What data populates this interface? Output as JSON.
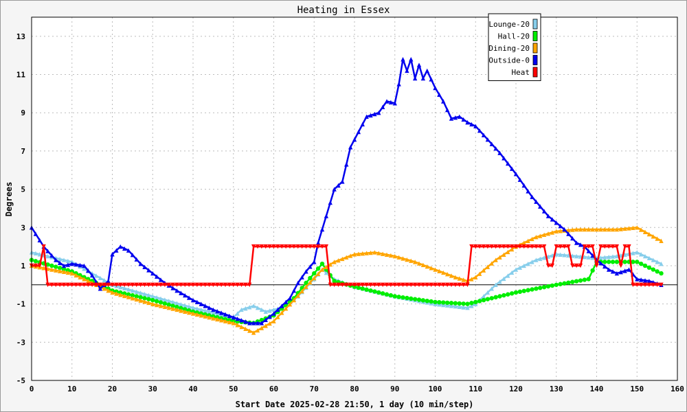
{
  "chart_data": {
    "type": "line",
    "title": "Heating in Essex",
    "xlabel": "Start Date 2025-02-28 21:50, 1 day (10 min/step)",
    "ylabel": "Degrees",
    "xlim": [
      0,
      160
    ],
    "ylim": [
      -5,
      14
    ],
    "x_ticks": [
      0,
      10,
      20,
      30,
      40,
      50,
      60,
      70,
      80,
      90,
      100,
      110,
      120,
      130,
      140,
      150,
      160
    ],
    "y_ticks": [
      -5,
      -3,
      -1,
      1,
      3,
      5,
      7,
      9,
      11,
      13
    ],
    "grid": true,
    "legend_position": "top-right",
    "series": [
      {
        "name": "Lounge-20",
        "color": "#87ceeb",
        "marker": "triangle",
        "points": [
          [
            0,
            1.7
          ],
          [
            10,
            1.2
          ],
          [
            20,
            0.0
          ],
          [
            30,
            -0.6
          ],
          [
            40,
            -1.2
          ],
          [
            50,
            -1.7
          ],
          [
            52,
            -1.3
          ],
          [
            55,
            -1.1
          ],
          [
            58,
            -1.4
          ],
          [
            62,
            -1.2
          ],
          [
            66,
            -0.6
          ],
          [
            70,
            0.3
          ],
          [
            72,
            0.8
          ],
          [
            75,
            0.3
          ],
          [
            80,
            -0.1
          ],
          [
            90,
            -0.6
          ],
          [
            100,
            -1.0
          ],
          [
            108,
            -1.2
          ],
          [
            110,
            -1.0
          ],
          [
            115,
            0.0
          ],
          [
            120,
            0.8
          ],
          [
            125,
            1.3
          ],
          [
            130,
            1.6
          ],
          [
            135,
            1.5
          ],
          [
            140,
            1.4
          ],
          [
            145,
            1.5
          ],
          [
            150,
            1.7
          ],
          [
            156,
            1.1
          ]
        ]
      },
      {
        "name": "Hall-20",
        "color": "#00ee00",
        "marker": "circle",
        "points": [
          [
            0,
            1.3
          ],
          [
            10,
            0.7
          ],
          [
            20,
            -0.3
          ],
          [
            30,
            -0.8
          ],
          [
            40,
            -1.4
          ],
          [
            50,
            -1.9
          ],
          [
            55,
            -2.0
          ],
          [
            60,
            -1.6
          ],
          [
            65,
            -0.7
          ],
          [
            68,
            0.1
          ],
          [
            70,
            0.6
          ],
          [
            72,
            1.1
          ],
          [
            75,
            0.2
          ],
          [
            80,
            -0.1
          ],
          [
            90,
            -0.6
          ],
          [
            100,
            -0.9
          ],
          [
            108,
            -1.0
          ],
          [
            112,
            -0.8
          ],
          [
            120,
            -0.4
          ],
          [
            130,
            0.0
          ],
          [
            138,
            0.3
          ],
          [
            140,
            1.2
          ],
          [
            145,
            1.2
          ],
          [
            150,
            1.2
          ],
          [
            156,
            0.6
          ]
        ]
      },
      {
        "name": "Dining-20",
        "color": "#ffa500",
        "marker": "triangle",
        "points": [
          [
            0,
            1.0
          ],
          [
            10,
            0.6
          ],
          [
            20,
            -0.4
          ],
          [
            30,
            -1.0
          ],
          [
            40,
            -1.5
          ],
          [
            50,
            -2.0
          ],
          [
            55,
            -2.5
          ],
          [
            60,
            -1.9
          ],
          [
            65,
            -0.8
          ],
          [
            68,
            -0.1
          ],
          [
            72,
            0.8
          ],
          [
            75,
            1.2
          ],
          [
            80,
            1.6
          ],
          [
            85,
            1.7
          ],
          [
            90,
            1.5
          ],
          [
            95,
            1.2
          ],
          [
            100,
            0.8
          ],
          [
            105,
            0.4
          ],
          [
            108,
            0.2
          ],
          [
            110,
            0.4
          ],
          [
            115,
            1.3
          ],
          [
            120,
            2.0
          ],
          [
            125,
            2.5
          ],
          [
            130,
            2.8
          ],
          [
            135,
            2.9
          ],
          [
            140,
            2.9
          ],
          [
            145,
            2.9
          ],
          [
            150,
            3.0
          ],
          [
            156,
            2.3
          ]
        ]
      },
      {
        "name": "Outside-0",
        "color": "#0000ee",
        "marker": "triangle",
        "points": [
          [
            0,
            3.0
          ],
          [
            3,
            2.0
          ],
          [
            6,
            1.3
          ],
          [
            8,
            1.0
          ],
          [
            10,
            1.1
          ],
          [
            13,
            1.0
          ],
          [
            15,
            0.5
          ],
          [
            17,
            -0.2
          ],
          [
            19,
            0.2
          ],
          [
            20,
            1.6
          ],
          [
            22,
            2.0
          ],
          [
            24,
            1.8
          ],
          [
            27,
            1.1
          ],
          [
            30,
            0.6
          ],
          [
            33,
            0.1
          ],
          [
            36,
            -0.3
          ],
          [
            40,
            -0.8
          ],
          [
            45,
            -1.3
          ],
          [
            50,
            -1.7
          ],
          [
            54,
            -2.0
          ],
          [
            57,
            -2.0
          ],
          [
            60,
            -1.5
          ],
          [
            64,
            -0.7
          ],
          [
            66,
            0.1
          ],
          [
            68,
            0.7
          ],
          [
            70,
            1.2
          ],
          [
            71,
            2.2
          ],
          [
            73,
            3.6
          ],
          [
            75,
            5.0
          ],
          [
            77,
            5.4
          ],
          [
            79,
            7.2
          ],
          [
            81,
            8.0
          ],
          [
            83,
            8.8
          ],
          [
            86,
            9.0
          ],
          [
            88,
            9.6
          ],
          [
            90,
            9.5
          ],
          [
            91,
            10.5
          ],
          [
            92,
            11.8
          ],
          [
            93,
            11.2
          ],
          [
            94,
            11.8
          ],
          [
            95,
            10.8
          ],
          [
            96,
            11.5
          ],
          [
            97,
            10.8
          ],
          [
            98,
            11.2
          ],
          [
            100,
            10.3
          ],
          [
            102,
            9.6
          ],
          [
            104,
            8.7
          ],
          [
            106,
            8.8
          ],
          [
            108,
            8.5
          ],
          [
            110,
            8.3
          ],
          [
            113,
            7.6
          ],
          [
            116,
            6.9
          ],
          [
            120,
            5.8
          ],
          [
            124,
            4.6
          ],
          [
            128,
            3.6
          ],
          [
            132,
            2.9
          ],
          [
            135,
            2.2
          ],
          [
            137,
            2.0
          ],
          [
            140,
            1.3
          ],
          [
            143,
            0.8
          ],
          [
            145,
            0.6
          ],
          [
            148,
            0.8
          ],
          [
            150,
            0.3
          ],
          [
            153,
            0.2
          ],
          [
            156,
            0.0
          ]
        ]
      },
      {
        "name": "Heat",
        "color": "#ff0000",
        "marker": "triangle-down",
        "points": [
          [
            0,
            1.0
          ],
          [
            2,
            1.0
          ],
          [
            3,
            2.0
          ],
          [
            4,
            0.0
          ],
          [
            54,
            0.0
          ],
          [
            55,
            2.0
          ],
          [
            73,
            2.0
          ],
          [
            74,
            0.0
          ],
          [
            108,
            0.0
          ],
          [
            109,
            2.0
          ],
          [
            127,
            2.0
          ],
          [
            128,
            1.0
          ],
          [
            129,
            1.0
          ],
          [
            130,
            2.0
          ],
          [
            133,
            2.0
          ],
          [
            134,
            1.0
          ],
          [
            136,
            1.0
          ],
          [
            137,
            2.0
          ],
          [
            139,
            2.0
          ],
          [
            140,
            1.0
          ],
          [
            141,
            2.0
          ],
          [
            145,
            2.0
          ],
          [
            146,
            1.0
          ],
          [
            147,
            2.0
          ],
          [
            148,
            2.0
          ],
          [
            149,
            0.0
          ],
          [
            156,
            0.0
          ]
        ]
      }
    ]
  }
}
